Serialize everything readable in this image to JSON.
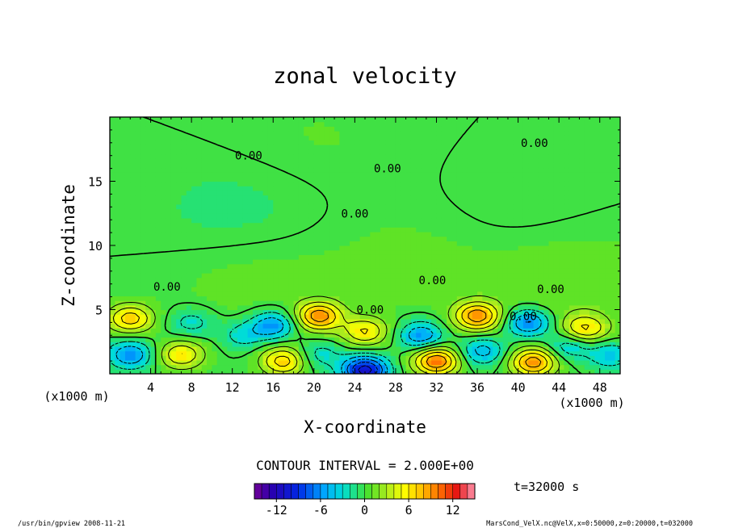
{
  "chart_data": {
    "type": "heatmap",
    "subtype": "filled-contour",
    "title": "zonal velocity",
    "xlabel": "X-coordinate",
    "ylabel": "Z-coordinate",
    "x_unit": "(x1000 m)",
    "x_unit_right": "(x1000 m)",
    "xlim": [
      0,
      50
    ],
    "ylim": [
      0,
      20
    ],
    "x_ticks": [
      4,
      8,
      12,
      16,
      20,
      24,
      28,
      32,
      36,
      40,
      44,
      48
    ],
    "y_ticks": [
      5,
      10,
      15
    ],
    "contour_interval_label": "CONTOUR INTERVAL = 2.000E+00",
    "contour_labels": [
      {
        "text": "0.00",
        "x": 13.6,
        "y": 17.0
      },
      {
        "text": "0.00",
        "x": 27.2,
        "y": 16.0
      },
      {
        "text": "0.00",
        "x": 41.6,
        "y": 18.0
      },
      {
        "text": "0.00",
        "x": 24.0,
        "y": 12.5
      },
      {
        "text": "0.00",
        "x": 5.6,
        "y": 6.8
      },
      {
        "text": "0.00",
        "x": 31.6,
        "y": 7.3
      },
      {
        "text": "0.00",
        "x": 43.2,
        "y": 6.6
      },
      {
        "text": "0.00",
        "x": 25.5,
        "y": 5.0
      },
      {
        "text": "0.00",
        "x": 40.5,
        "y": 4.5
      }
    ],
    "colorbar": {
      "min": -15,
      "max": 15,
      "tick_labels": [
        "-12",
        "-6",
        "0",
        "6",
        "12"
      ],
      "tick_values": [
        -12,
        -6,
        0,
        6,
        12
      ]
    },
    "time_label": "t=32000 s",
    "field_regions": [
      {
        "x": 2.0,
        "y": 4.3,
        "value": 7
      },
      {
        "x": 2.0,
        "y": 1.5,
        "value": -6
      },
      {
        "x": 7.0,
        "y": 1.5,
        "value": 6
      },
      {
        "x": 8.0,
        "y": 4.0,
        "value": -3
      },
      {
        "x": 13.0,
        "y": 3.0,
        "value": -3
      },
      {
        "x": 16.0,
        "y": 3.8,
        "value": -6
      },
      {
        "x": 17.0,
        "y": 1.0,
        "value": 7
      },
      {
        "x": 20.5,
        "y": 4.5,
        "value": 9
      },
      {
        "x": 25.0,
        "y": 3.3,
        "value": 6
      },
      {
        "x": 20.5,
        "y": 1.5,
        "value": -3
      },
      {
        "x": 25.0,
        "y": 0.3,
        "value": -11
      },
      {
        "x": 30.5,
        "y": 3.0,
        "value": -6
      },
      {
        "x": 32.0,
        "y": 1.0,
        "value": 10
      },
      {
        "x": 36.0,
        "y": 4.5,
        "value": 9
      },
      {
        "x": 36.5,
        "y": 1.8,
        "value": -5
      },
      {
        "x": 41.0,
        "y": 4.0,
        "value": -7
      },
      {
        "x": 41.5,
        "y": 0.9,
        "value": 9
      },
      {
        "x": 45.0,
        "y": 2.2,
        "value": -4
      },
      {
        "x": 46.5,
        "y": 3.5,
        "value": 6
      },
      {
        "x": 49.0,
        "y": 1.5,
        "value": -4
      },
      {
        "x": 13.0,
        "y": 12.0,
        "value": -1.2
      },
      {
        "x": 14.0,
        "y": 8.0,
        "value": 1.2
      },
      {
        "x": 30.0,
        "y": 9.0,
        "value": 0.8
      },
      {
        "x": 40.0,
        "y": 12.0,
        "value": -0.6
      },
      {
        "x": 20.0,
        "y": 18.0,
        "value": 0.6
      },
      {
        "x": 45.0,
        "y": 7.0,
        "value": 1.5
      }
    ]
  },
  "footer": {
    "left": "/usr/bin/gpview   2008-11-21",
    "right": "MarsCond_VelX.nc@VelX,x=0:50000,z=0:20000,t=032000"
  }
}
